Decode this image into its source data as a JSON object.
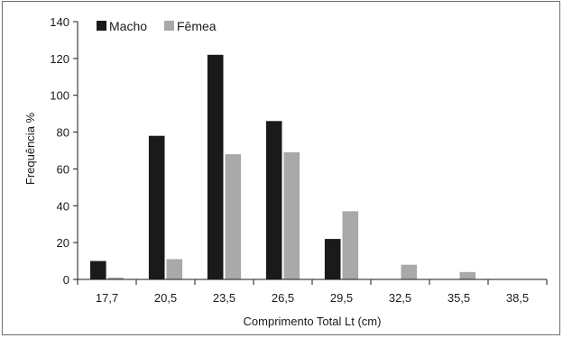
{
  "chart_data": {
    "type": "bar",
    "title": "",
    "xlabel": "Comprimento Total Lt (cm)",
    "ylabel": "Frequência %",
    "categories": [
      "17,7",
      "20,5",
      "23,5",
      "26,5",
      "29,5",
      "32,5",
      "35,5",
      "38,5"
    ],
    "series": [
      {
        "name": "Macho",
        "color": "#1a1a1a",
        "values": [
          10,
          78,
          122,
          86,
          22,
          0,
          0,
          0
        ]
      },
      {
        "name": "Fêmea",
        "color": "#a9a9a9",
        "values": [
          1,
          11,
          68,
          69,
          37,
          8,
          4,
          0
        ]
      }
    ],
    "ylim": [
      0,
      140
    ],
    "yticks": [
      0,
      20,
      40,
      60,
      80,
      100,
      120,
      140
    ],
    "grid": false,
    "legend_position": "top-left"
  }
}
